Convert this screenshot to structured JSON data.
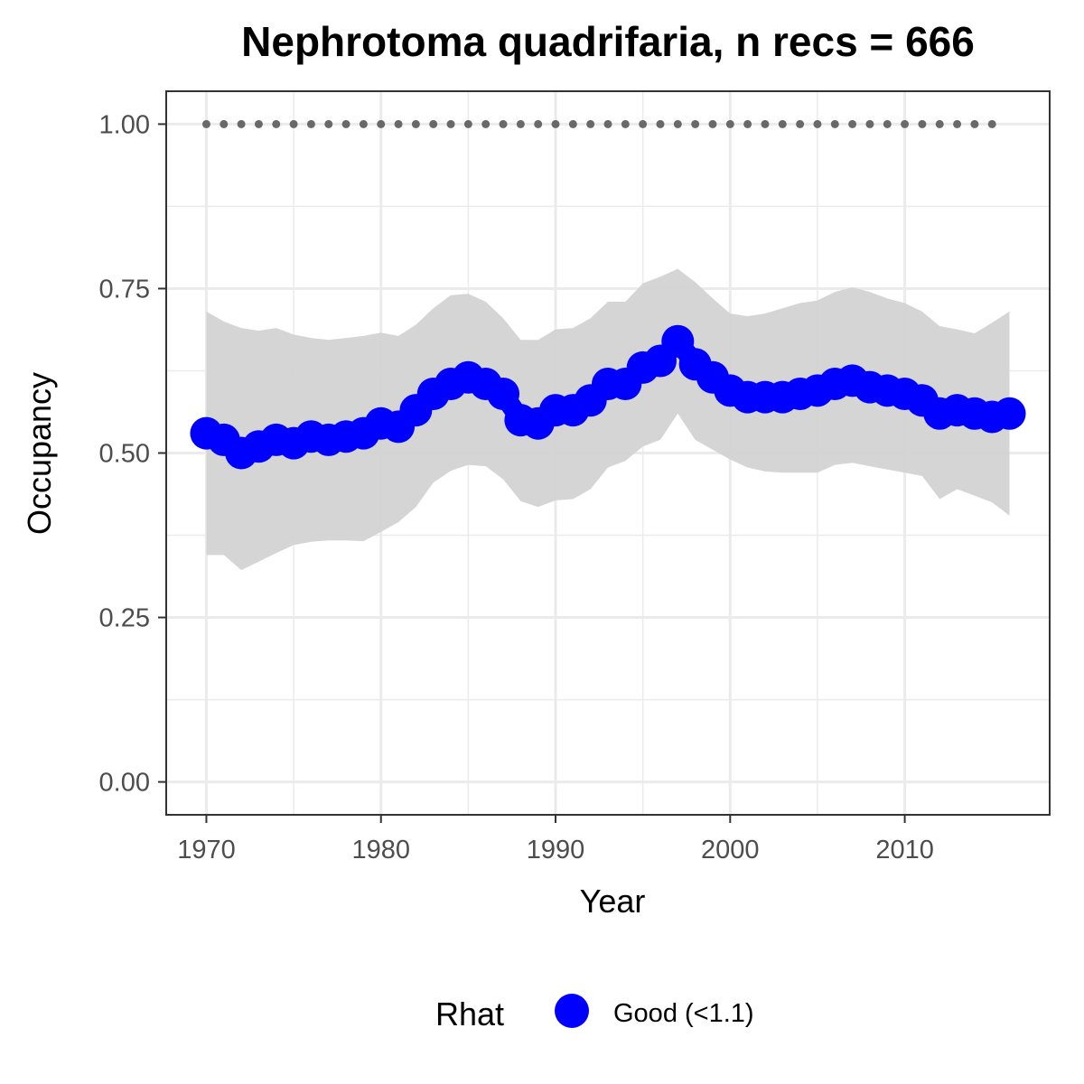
{
  "chart_data": {
    "type": "line",
    "title": "Nephrotoma quadrifaria, n recs = 666",
    "xlabel": "Year",
    "ylabel": "Occupancy",
    "xlim": [
      1967.7,
      2018.3
    ],
    "ylim": [
      -0.05,
      1.05
    ],
    "x_ticks": [
      1970,
      1980,
      1990,
      2000,
      2010
    ],
    "x_tick_labels": [
      "1970",
      "1980",
      "1990",
      "2000",
      "2010"
    ],
    "y_ticks": [
      0,
      0.25,
      0.5,
      0.75,
      1.0
    ],
    "y_tick_labels": [
      "0.00",
      "0.25",
      "0.50",
      "0.75",
      "1.00"
    ],
    "grid": true,
    "colors": {
      "series": "#0000ff",
      "ribbon": "#d3d3d3",
      "reference_dots": "#696969",
      "grid": "#ebebeb",
      "panel_border": "#333333"
    },
    "legend": {
      "title": "Rhat",
      "position": "bottom",
      "entries": [
        {
          "label": "Good (<1.1)",
          "color": "#0000ff"
        }
      ]
    },
    "x": [
      1970,
      1971,
      1972,
      1973,
      1974,
      1975,
      1976,
      1977,
      1978,
      1979,
      1980,
      1981,
      1982,
      1983,
      1984,
      1985,
      1986,
      1987,
      1988,
      1989,
      1990,
      1991,
      1992,
      1993,
      1994,
      1995,
      1996,
      1997,
      1998,
      1999,
      2000,
      2001,
      2002,
      2003,
      2004,
      2005,
      2006,
      2007,
      2008,
      2009,
      2010,
      2011,
      2012,
      2013,
      2014,
      2015,
      2016
    ],
    "series": [
      {
        "name": "Good (<1.1)",
        "values": [
          0.53,
          0.52,
          0.5,
          0.51,
          0.52,
          0.515,
          0.525,
          0.52,
          0.525,
          0.53,
          0.545,
          0.54,
          0.565,
          0.59,
          0.605,
          0.615,
          0.605,
          0.59,
          0.55,
          0.545,
          0.565,
          0.565,
          0.58,
          0.605,
          0.605,
          0.63,
          0.64,
          0.67,
          0.635,
          0.615,
          0.595,
          0.585,
          0.585,
          0.585,
          0.59,
          0.595,
          0.605,
          0.61,
          0.6,
          0.595,
          0.59,
          0.58,
          0.56,
          0.565,
          0.56,
          0.555,
          0.56
        ]
      }
    ],
    "ribbon": {
      "lower": [
        0.345,
        0.345,
        0.322,
        0.335,
        0.348,
        0.36,
        0.365,
        0.367,
        0.367,
        0.366,
        0.38,
        0.395,
        0.418,
        0.455,
        0.473,
        0.482,
        0.48,
        0.46,
        0.427,
        0.418,
        0.428,
        0.43,
        0.445,
        0.478,
        0.488,
        0.51,
        0.52,
        0.56,
        0.52,
        0.505,
        0.49,
        0.478,
        0.472,
        0.47,
        0.47,
        0.47,
        0.482,
        0.485,
        0.48,
        0.475,
        0.47,
        0.465,
        0.43,
        0.445,
        0.435,
        0.425,
        0.405
      ],
      "upper": [
        0.715,
        0.7,
        0.69,
        0.686,
        0.69,
        0.68,
        0.675,
        0.672,
        0.675,
        0.678,
        0.683,
        0.678,
        0.695,
        0.72,
        0.74,
        0.742,
        0.73,
        0.705,
        0.672,
        0.672,
        0.688,
        0.69,
        0.705,
        0.73,
        0.73,
        0.758,
        0.768,
        0.78,
        0.76,
        0.735,
        0.712,
        0.708,
        0.712,
        0.72,
        0.728,
        0.732,
        0.745,
        0.752,
        0.745,
        0.735,
        0.728,
        0.715,
        0.693,
        0.688,
        0.682,
        0.698,
        0.715
      ]
    },
    "reference_line": {
      "style": "dotted",
      "y": 1.0,
      "x": [
        1970,
        1971,
        1972,
        1973,
        1974,
        1975,
        1976,
        1977,
        1978,
        1979,
        1980,
        1981,
        1982,
        1983,
        1984,
        1985,
        1986,
        1987,
        1988,
        1989,
        1990,
        1991,
        1992,
        1993,
        1994,
        1995,
        1996,
        1997,
        1998,
        1999,
        2000,
        2001,
        2002,
        2003,
        2004,
        2005,
        2006,
        2007,
        2008,
        2009,
        2010,
        2011,
        2012,
        2013,
        2014,
        2015
      ]
    }
  }
}
